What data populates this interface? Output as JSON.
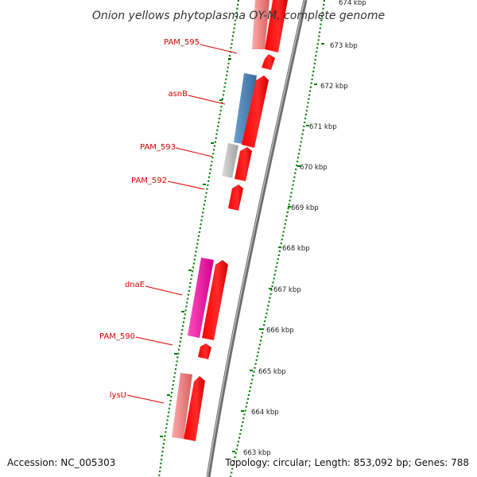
{
  "title": "Onion yellows phytoplasma OY-M, complete genome",
  "footer": {
    "accession": "Accession: NC_005303",
    "summary": "Topology: circular; Length: 853,092 bp; Genes: 788"
  },
  "scale_labels": [
    "674 kbp",
    "673 kbp",
    "672 kbp",
    "671 kbp",
    "670 kbp",
    "669 kbp",
    "668 kbp",
    "667 kbp",
    "666 kbp",
    "665 kbp",
    "664 kbp",
    "663 kbp"
  ],
  "gene_labels": [
    "PAM_595",
    "asnB",
    "PAM_593",
    "PAM_592",
    "dnaE",
    "PAM_590",
    "lysU"
  ],
  "colors": {
    "cds": "#ff0000",
    "asnB": "#4a7fb5",
    "PAM_593": "#bbbbbb",
    "dnaE": "#ff1aa3",
    "pink": "#f07a7a",
    "ticks": "#008000",
    "labels": "#dd0000",
    "backbone": "#777777"
  }
}
